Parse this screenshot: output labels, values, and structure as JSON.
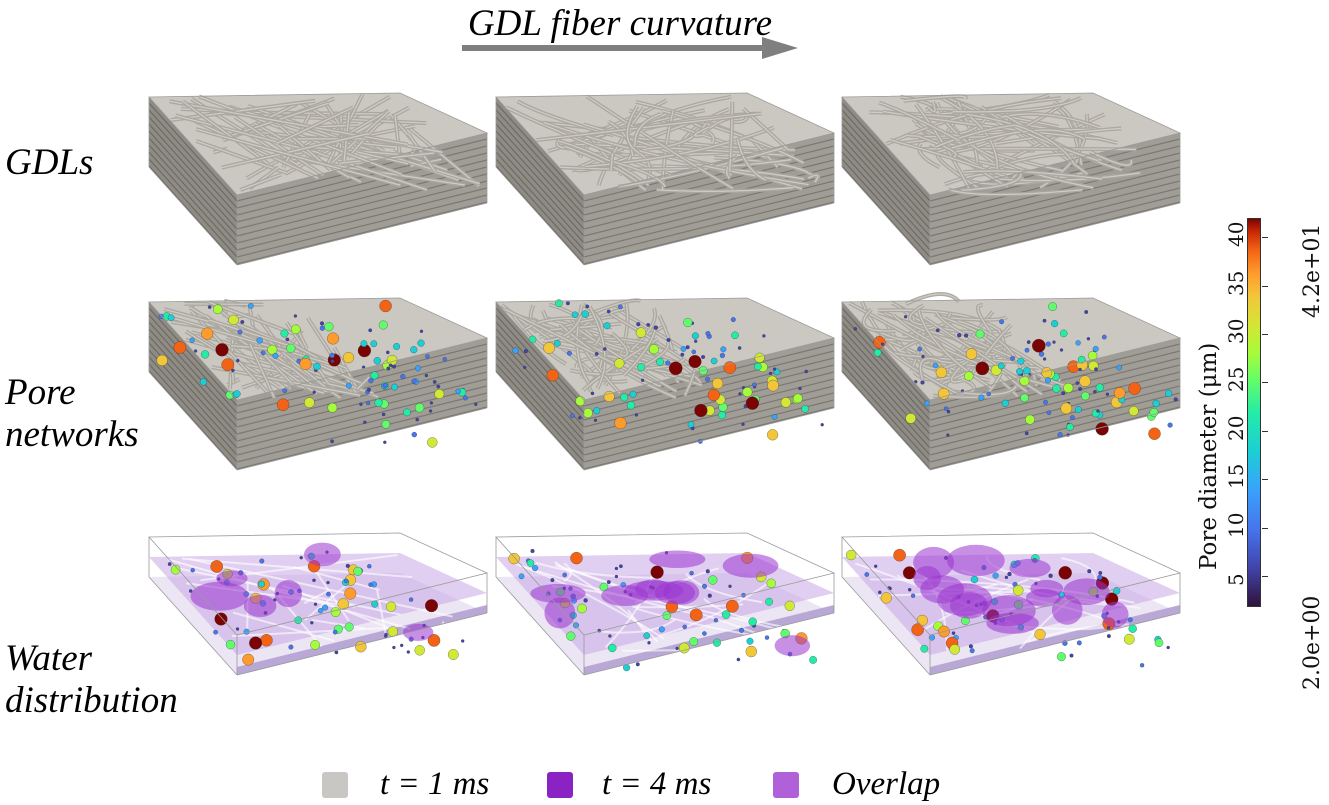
{
  "header": {
    "title": "GDL fiber curvature"
  },
  "rows": [
    {
      "label": "GDLs"
    },
    {
      "label": "Pore\nnetworks"
    },
    {
      "label": "Water\ndistribution"
    }
  ],
  "colorbar": {
    "title": "Pore diameter (μm)",
    "max_label": "4.2e+01",
    "min_label": "2.0e+00",
    "ticks": [
      "40",
      "35",
      "30",
      "25",
      "20",
      "15",
      "10",
      "5"
    ],
    "min": 2.0,
    "max": 42.0,
    "colormap": "turbo"
  },
  "legend": [
    {
      "label": "t = 1 ms",
      "color": "#c9c7c3"
    },
    {
      "label": "t = 4 ms",
      "color": "#8a22c4"
    },
    {
      "label": "Overlap",
      "color": "#b060d8"
    }
  ],
  "colors": {
    "fiber": "#b8b5ae",
    "water4": "#9a34d0",
    "overlap": "#c38fe0",
    "arrow": "#7f7f7f"
  }
}
